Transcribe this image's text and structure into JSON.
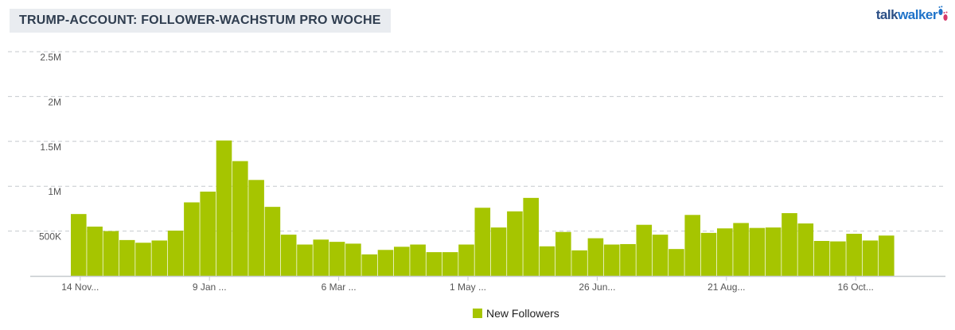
{
  "title": "TRUMP-ACCOUNT: FOLLOWER-WACHSTUM PRO WOCHE",
  "logo": {
    "prefix": "talk",
    "suffix": "walker",
    "icon": "footprints-icon"
  },
  "colors": {
    "bar": "#a6c500",
    "grid": "#c5c9ce",
    "axis": "#c5c9ce",
    "title_bg": "#e9ecf0",
    "title_text": "#2f3d4f"
  },
  "chart_data": {
    "type": "bar",
    "title": "TRUMP-ACCOUNT: FOLLOWER-WACHSTUM PRO WOCHE",
    "xlabel": "",
    "ylabel": "",
    "ylim": [
      0,
      2500000
    ],
    "yticks": [
      {
        "value": 500000,
        "label": "500K"
      },
      {
        "value": 1000000,
        "label": "1M"
      },
      {
        "value": 1500000,
        "label": "1.5M"
      },
      {
        "value": 2000000,
        "label": "2M"
      },
      {
        "value": 2500000,
        "label": "2.5M"
      }
    ],
    "xtick_labels": [
      {
        "index": 0,
        "label": "14 Nov..."
      },
      {
        "index": 8,
        "label": "9 Jan ..."
      },
      {
        "index": 16,
        "label": "6 Mar ..."
      },
      {
        "index": 24,
        "label": "1 May ..."
      },
      {
        "index": 32,
        "label": "26 Jun..."
      },
      {
        "index": 40,
        "label": "21 Aug..."
      },
      {
        "index": 48,
        "label": "16 Oct..."
      }
    ],
    "grid": true,
    "legend_position": "bottom-center",
    "series": [
      {
        "name": "New Followers",
        "values": [
          690000,
          550000,
          500000,
          400000,
          370000,
          395000,
          505000,
          820000,
          940000,
          1510000,
          1280000,
          1070000,
          770000,
          460000,
          350000,
          405000,
          380000,
          360000,
          240000,
          290000,
          325000,
          350000,
          265000,
          265000,
          350000,
          760000,
          540000,
          720000,
          870000,
          330000,
          490000,
          285000,
          420000,
          350000,
          355000,
          570000,
          460000,
          300000,
          680000,
          480000,
          530000,
          590000,
          535000,
          540000,
          700000,
          585000,
          390000,
          385000,
          470000,
          395000,
          450000
        ]
      }
    ]
  }
}
